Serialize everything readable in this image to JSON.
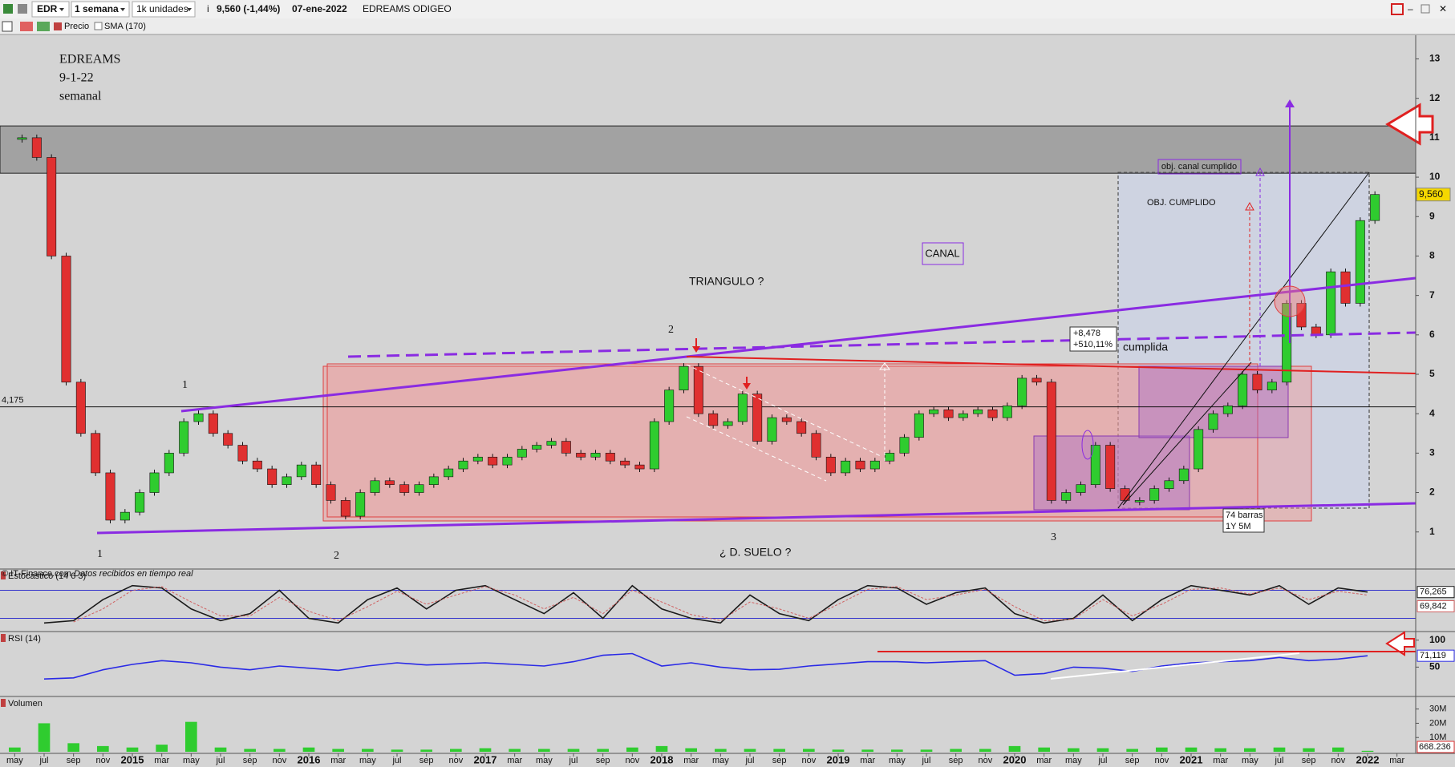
{
  "toolbar": {
    "symbol": "EDR",
    "period": "1 semana",
    "units": "1k unidades",
    "quote": "9,560 (-1,44%)",
    "date": "07-ene-2022",
    "name": "EDREAMS ODIGEO",
    "price_label": "Precio",
    "sma_label": "SMA (170)"
  },
  "footer": {
    "source": "© IT-Finance.com",
    "status": "Datos recibidos en tiempo real"
  },
  "annotations": {
    "heading": [
      "EDREAMS",
      "9-1-22",
      "semanal"
    ],
    "triangle": "TRIANGULO ?",
    "channel": "CANAL",
    "floor": "¿ D. SUELO ?",
    "target": "OBJ. CUMPLIDO",
    "channel_target": "obj. canal cumplido",
    "change": [
      "+8,478",
      "+510,11%"
    ],
    "done": "cumplida",
    "bars": [
      "74 barras",
      "1Y 5M"
    ],
    "waves": [
      "1",
      "1",
      "2",
      "2",
      "3"
    ]
  },
  "chart_data": [
    {
      "type": "candlestick",
      "x": [
        "2014-05",
        "2014-06",
        "2014-07",
        "2014-08",
        "2014-09",
        "2014-10",
        "2014-11",
        "2014-12",
        "2015-01",
        "2015-02",
        "2015-03",
        "2015-04",
        "2015-05",
        "2015-06",
        "2015-07",
        "2015-08",
        "2015-09",
        "2015-10",
        "2015-11",
        "2015-12",
        "2016-01",
        "2016-02",
        "2016-03",
        "2016-04",
        "2016-05",
        "2016-06",
        "2016-07",
        "2016-08",
        "2016-09",
        "2016-10",
        "2016-11",
        "2016-12",
        "2017-01",
        "2017-02",
        "2017-03",
        "2017-04",
        "2017-05",
        "2017-06",
        "2017-07",
        "2017-08",
        "2017-09",
        "2017-10",
        "2017-11",
        "2017-12",
        "2018-01",
        "2018-02",
        "2018-03",
        "2018-04",
        "2018-05",
        "2018-06",
        "2018-07",
        "2018-08",
        "2018-09",
        "2018-10",
        "2018-11",
        "2018-12",
        "2019-01",
        "2019-02",
        "2019-03",
        "2019-04",
        "2019-05",
        "2019-06",
        "2019-07",
        "2019-08",
        "2019-09",
        "2019-10",
        "2019-11",
        "2019-12",
        "2020-01",
        "2020-02",
        "2020-03",
        "2020-04",
        "2020-05",
        "2020-06",
        "2020-07",
        "2020-08",
        "2020-09",
        "2020-10",
        "2020-11",
        "2020-12",
        "2021-01",
        "2021-02",
        "2021-03",
        "2021-04",
        "2021-05",
        "2021-06",
        "2021-07",
        "2021-08",
        "2021-09",
        "2021-10",
        "2021-11",
        "2021-12",
        "2022-01"
      ],
      "values": [
        11,
        10.5,
        8,
        4.8,
        3.5,
        2.5,
        1.3,
        1.5,
        2.0,
        2.5,
        3.0,
        3.8,
        4.0,
        3.5,
        3.2,
        2.8,
        2.6,
        2.2,
        2.4,
        2.7,
        2.2,
        1.8,
        1.4,
        2.0,
        2.3,
        2.2,
        2.0,
        2.2,
        2.4,
        2.6,
        2.8,
        2.9,
        2.7,
        2.9,
        3.1,
        3.2,
        3.3,
        3.0,
        2.9,
        3.0,
        2.8,
        2.7,
        2.6,
        3.8,
        4.6,
        5.2,
        4.0,
        3.7,
        3.8,
        4.5,
        3.3,
        3.9,
        3.8,
        3.5,
        2.9,
        2.5,
        2.8,
        2.6,
        2.8,
        3.0,
        3.4,
        4.0,
        4.1,
        3.9,
        4.0,
        4.1,
        3.9,
        4.2,
        4.9,
        4.8,
        1.8,
        2.0,
        2.2,
        3.2,
        2.1,
        1.8,
        1.8,
        2.1,
        2.3,
        2.6,
        3.6,
        4.0,
        4.2,
        5.0,
        4.6,
        4.8,
        6.8,
        6.2,
        6.0,
        7.6,
        6.8,
        8.9,
        9.56
      ],
      "up_color": "#2fcc2f",
      "down_color": "#e03030",
      "xlim": [
        "2014-04",
        "2022-04"
      ],
      "ylim": [
        0.1,
        13.6
      ],
      "yticks": [
        1,
        2,
        3,
        4,
        5,
        6,
        7,
        8,
        9,
        10,
        11,
        12,
        13
      ],
      "xticks": [
        {
          "value": "2014-05",
          "label": "may"
        },
        {
          "value": "2014-07",
          "label": "jul"
        },
        {
          "value": "2014-09",
          "label": "sep"
        },
        {
          "value": "2014-11",
          "label": "nov"
        },
        {
          "value": "2015-01",
          "label": "2015"
        },
        {
          "value": "2015-03",
          "label": "mar"
        },
        {
          "value": "2015-05",
          "label": "may"
        },
        {
          "value": "2015-07",
          "label": "jul"
        },
        {
          "value": "2015-09",
          "label": "sep"
        },
        {
          "value": "2015-11",
          "label": "nov"
        },
        {
          "value": "2016-01",
          "label": "2016"
        },
        {
          "value": "2016-03",
          "label": "mar"
        },
        {
          "value": "2016-05",
          "label": "may"
        },
        {
          "value": "2016-07",
          "label": "jul"
        },
        {
          "value": "2016-09",
          "label": "sep"
        },
        {
          "value": "2016-11",
          "label": "nov"
        },
        {
          "value": "2017-01",
          "label": "2017"
        },
        {
          "value": "2017-03",
          "label": "mar"
        },
        {
          "value": "2017-05",
          "label": "may"
        },
        {
          "value": "2017-07",
          "label": "jul"
        },
        {
          "value": "2017-09",
          "label": "sep"
        },
        {
          "value": "2017-11",
          "label": "nov"
        },
        {
          "value": "2018-01",
          "label": "2018"
        },
        {
          "value": "2018-03",
          "label": "mar"
        },
        {
          "value": "2018-05",
          "label": "may"
        },
        {
          "value": "2018-07",
          "label": "jul"
        },
        {
          "value": "2018-09",
          "label": "sep"
        },
        {
          "value": "2018-11",
          "label": "nov"
        },
        {
          "value": "2019-01",
          "label": "2019"
        },
        {
          "value": "2019-03",
          "label": "mar"
        },
        {
          "value": "2019-05",
          "label": "may"
        },
        {
          "value": "2019-07",
          "label": "jul"
        },
        {
          "value": "2019-09",
          "label": "sep"
        },
        {
          "value": "2019-11",
          "label": "nov"
        },
        {
          "value": "2020-01",
          "label": "2020"
        },
        {
          "value": "2020-03",
          "label": "mar"
        },
        {
          "value": "2020-05",
          "label": "may"
        },
        {
          "value": "2020-07",
          "label": "jul"
        },
        {
          "value": "2020-09",
          "label": "sep"
        },
        {
          "value": "2020-11",
          "label": "nov"
        },
        {
          "value": "2021-01",
          "label": "2021"
        },
        {
          "value": "2021-03",
          "label": "mar"
        },
        {
          "value": "2021-05",
          "label": "may"
        },
        {
          "value": "2021-07",
          "label": "jul"
        },
        {
          "value": "2021-09",
          "label": "sep"
        },
        {
          "value": "2021-11",
          "label": "nov"
        },
        {
          "value": "2022-01",
          "label": "2022"
        },
        {
          "value": "2022-03",
          "label": "mar"
        }
      ],
      "zone": [
        10.1,
        11.3
      ],
      "level": {
        "value": 4.175,
        "label": "4,175"
      },
      "last_price": {
        "value": 9.56,
        "label": "9,560"
      }
    },
    {
      "type": "line",
      "title": "Estocástico (14 6 3)",
      "x": [
        "2014-05",
        "2014-07",
        "2014-09",
        "2014-11",
        "2015-01",
        "2015-03",
        "2015-05",
        "2015-07",
        "2015-09",
        "2015-11",
        "2016-01",
        "2016-03",
        "2016-05",
        "2016-07",
        "2016-09",
        "2016-11",
        "2017-01",
        "2017-03",
        "2017-05",
        "2017-07",
        "2017-09",
        "2017-11",
        "2018-01",
        "2018-03",
        "2018-05",
        "2018-07",
        "2018-09",
        "2018-11",
        "2019-01",
        "2019-03",
        "2019-05",
        "2019-07",
        "2019-09",
        "2019-11",
        "2020-01",
        "2020-03",
        "2020-05",
        "2020-07",
        "2020-09",
        "2020-11",
        "2021-01",
        "2021-03",
        "2021-05",
        "2021-07",
        "2021-09",
        "2021-11",
        "2022-01"
      ],
      "series": [
        {
          "color": "#1a1a1a",
          "values": [
            null,
            10,
            15,
            60,
            90,
            85,
            40,
            15,
            30,
            80,
            20,
            10,
            60,
            85,
            40,
            80,
            90,
            60,
            30,
            75,
            20,
            90,
            40,
            20,
            10,
            70,
            30,
            15,
            60,
            90,
            85,
            50,
            75,
            85,
            30,
            10,
            20,
            70,
            15,
            60,
            90,
            80,
            70,
            90,
            50,
            85,
            76.265
          ],
          "last_label": "76,265"
        },
        {
          "color": "#d06060",
          "values": [
            null,
            null,
            12,
            40,
            80,
            88,
            55,
            25,
            25,
            65,
            35,
            15,
            45,
            78,
            50,
            70,
            88,
            70,
            40,
            65,
            30,
            80,
            55,
            28,
            15,
            55,
            40,
            20,
            50,
            82,
            88,
            60,
            70,
            82,
            45,
            15,
            18,
            60,
            25,
            50,
            82,
            85,
            72,
            85,
            60,
            78,
            69.842
          ],
          "last_label": "69,842"
        }
      ],
      "ylim": [
        -5,
        105
      ],
      "levels": [
        80,
        20
      ],
      "level_color": "#3333cc"
    },
    {
      "type": "line",
      "title": "RSI (14)",
      "x": [
        "2014-05",
        "2014-07",
        "2014-09",
        "2014-11",
        "2015-01",
        "2015-03",
        "2015-05",
        "2015-07",
        "2015-09",
        "2015-11",
        "2016-01",
        "2016-03",
        "2016-05",
        "2016-07",
        "2016-09",
        "2016-11",
        "2017-01",
        "2017-03",
        "2017-05",
        "2017-07",
        "2017-09",
        "2017-11",
        "2018-01",
        "2018-03",
        "2018-05",
        "2018-07",
        "2018-09",
        "2018-11",
        "2019-01",
        "2019-03",
        "2019-05",
        "2019-07",
        "2019-09",
        "2019-11",
        "2020-01",
        "2020-03",
        "2020-05",
        "2020-07",
        "2020-09",
        "2020-11",
        "2021-01",
        "2021-03",
        "2021-05",
        "2021-07",
        "2021-09",
        "2021-11",
        "2022-01"
      ],
      "series": [
        {
          "color": "#2a2ae6",
          "values": [
            null,
            28,
            30,
            45,
            55,
            62,
            58,
            50,
            45,
            52,
            48,
            44,
            52,
            58,
            54,
            56,
            58,
            55,
            52,
            60,
            72,
            75,
            52,
            58,
            50,
            45,
            46,
            52,
            56,
            60,
            60,
            58,
            60,
            62,
            35,
            38,
            50,
            48,
            42,
            52,
            58,
            60,
            62,
            68,
            62,
            65,
            71.119
          ],
          "last_label": "71,119"
        }
      ],
      "ylim": [
        0,
        110
      ],
      "yticks": [
        100,
        50
      ]
    },
    {
      "type": "bar",
      "title": "Volumen",
      "x": [
        "2014-05",
        "2014-07",
        "2014-09",
        "2014-11",
        "2015-01",
        "2015-03",
        "2015-05",
        "2015-07",
        "2015-09",
        "2015-11",
        "2016-01",
        "2016-03",
        "2016-05",
        "2016-07",
        "2016-09",
        "2016-11",
        "2017-01",
        "2017-03",
        "2017-05",
        "2017-07",
        "2017-09",
        "2017-11",
        "2018-01",
        "2018-03",
        "2018-05",
        "2018-07",
        "2018-09",
        "2018-11",
        "2019-01",
        "2019-03",
        "2019-05",
        "2019-07",
        "2019-09",
        "2019-11",
        "2020-01",
        "2020-03",
        "2020-05",
        "2020-07",
        "2020-09",
        "2020-11",
        "2021-01",
        "2021-03",
        "2021-05",
        "2021-07",
        "2021-09",
        "2021-11",
        "2022-01"
      ],
      "values": [
        3000000,
        20000000,
        6000000,
        4000000,
        3000000,
        5000000,
        21000000,
        3000000,
        2000000,
        2000000,
        3000000,
        2000000,
        2000000,
        1500000,
        1500000,
        2000000,
        2500000,
        2000000,
        2000000,
        2000000,
        2000000,
        3000000,
        4000000,
        2500000,
        2000000,
        2000000,
        2000000,
        2000000,
        1500000,
        1500000,
        1500000,
        1500000,
        2000000,
        2000000,
        4000000,
        3000000,
        2500000,
        2500000,
        2000000,
        3000000,
        3000000,
        2500000,
        2500000,
        3000000,
        2500000,
        3000000,
        668236
      ],
      "last_label": "668.236",
      "color": "#2fcc2f",
      "ylim": [
        0,
        36000000
      ],
      "yticks": [
        {
          "value": 10000000,
          "label": "10M"
        },
        {
          "value": 20000000,
          "label": "20M"
        },
        {
          "value": 30000000,
          "label": "30M"
        }
      ]
    }
  ]
}
